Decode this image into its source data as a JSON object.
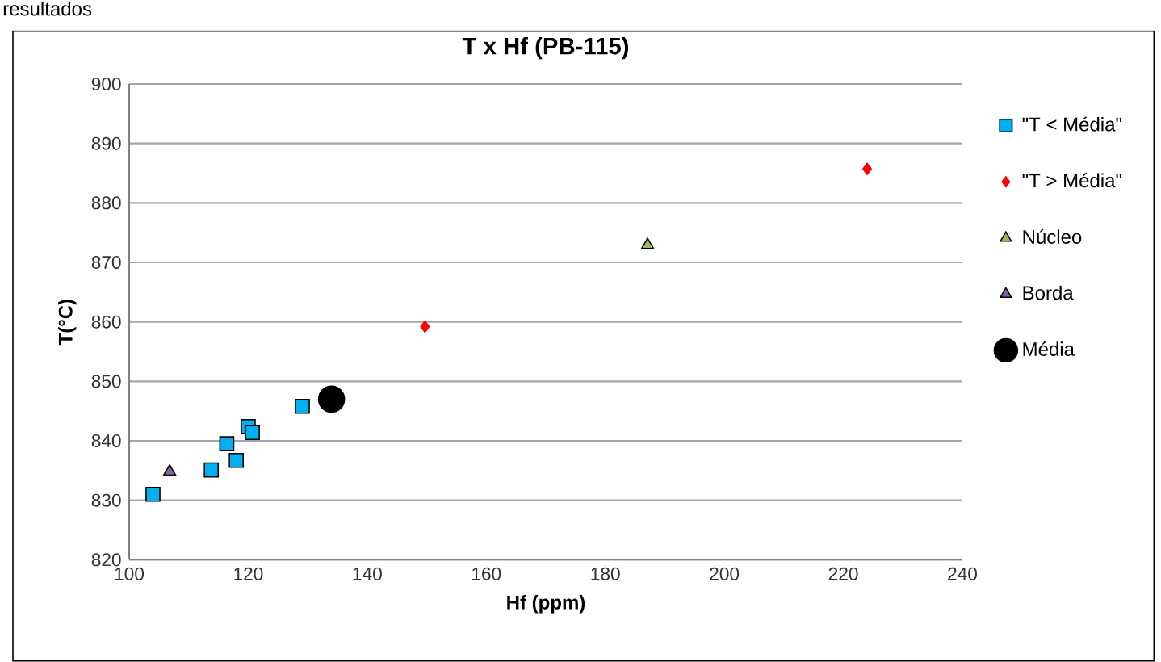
{
  "chart_data": {
    "type": "scatter",
    "title": "T x Hf (PB-115)",
    "xlabel": "Hf (ppm)",
    "ylabel": "T(°C)",
    "annotations": [
      "resultados"
    ],
    "xlim": [
      100,
      240
    ],
    "xticks": [
      100,
      120,
      140,
      160,
      180,
      200,
      220,
      240
    ],
    "ylim": [
      820,
      900
    ],
    "yticks": [
      820,
      830,
      840,
      850,
      860,
      870,
      880,
      890,
      900
    ],
    "grid": "y",
    "legend": "right",
    "series": [
      {
        "name": "\"T < Média\"",
        "color": "#00b0f0",
        "marker": "square",
        "x": [
          104,
          113.8,
          116.4,
          118,
          120,
          120.7,
          129.1
        ],
        "values": [
          831,
          835.1,
          839.5,
          836.7,
          842.4,
          841.4,
          845.8
        ]
      },
      {
        "name": "\"T > Média\"",
        "color": "#ff0000",
        "marker": "diamond",
        "x": [
          149.7,
          224
        ],
        "values": [
          859.2,
          885.7
        ]
      },
      {
        "name": "Núcleo",
        "color": "#9bbb59",
        "marker": "triangle",
        "x": [
          187.1
        ],
        "values": [
          872.9
        ]
      },
      {
        "name": "Borda",
        "color": "#8064a2",
        "marker": "triangle",
        "x": [
          106.8
        ],
        "values": [
          834.8
        ]
      },
      {
        "name": "Média",
        "color": "#000000",
        "marker": "circle",
        "x": [
          134
        ],
        "values": [
          847
        ]
      }
    ]
  }
}
